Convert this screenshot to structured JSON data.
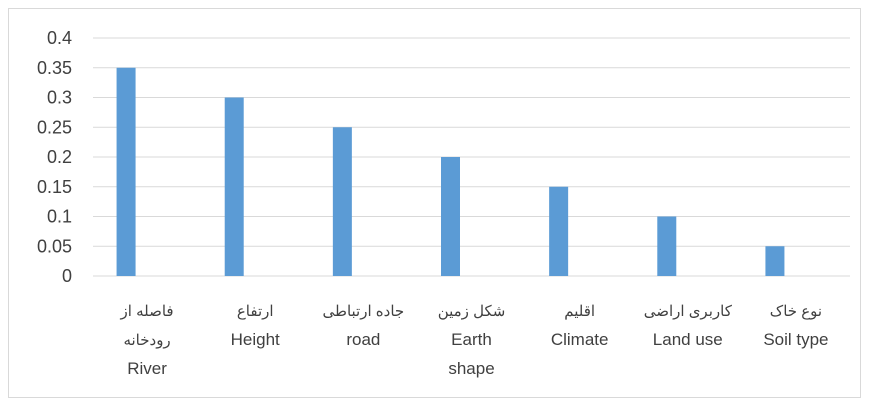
{
  "chart_data": {
    "type": "bar",
    "categories": [
      {
        "lines": [
          "فاصله از",
          "رودخانه",
          "River"
        ]
      },
      {
        "lines": [
          "ارتفاع",
          "Height"
        ]
      },
      {
        "lines": [
          "جاده ارتباطی",
          "road"
        ]
      },
      {
        "lines": [
          "شکل زمین",
          "Earth",
          "shape"
        ]
      },
      {
        "lines": [
          "اقلیم",
          "Climate"
        ]
      },
      {
        "lines": [
          "کاربری اراضی",
          "Land use"
        ]
      },
      {
        "lines": [
          "نوع خاک",
          "Soil type"
        ]
      }
    ],
    "values": [
      0.35,
      0.3,
      0.25,
      0.2,
      0.15,
      0.1,
      0.05
    ],
    "yticks": [
      "0",
      "0.05",
      "0.1",
      "0.15",
      "0.2",
      "0.25",
      "0.3",
      "0.35",
      "0.4"
    ],
    "ylim": [
      0,
      0.4
    ],
    "grid": true,
    "title": "",
    "xlabel": "",
    "ylabel": "",
    "bar_color": "#5b9bd5",
    "grid_color": "#d9d9d9"
  }
}
